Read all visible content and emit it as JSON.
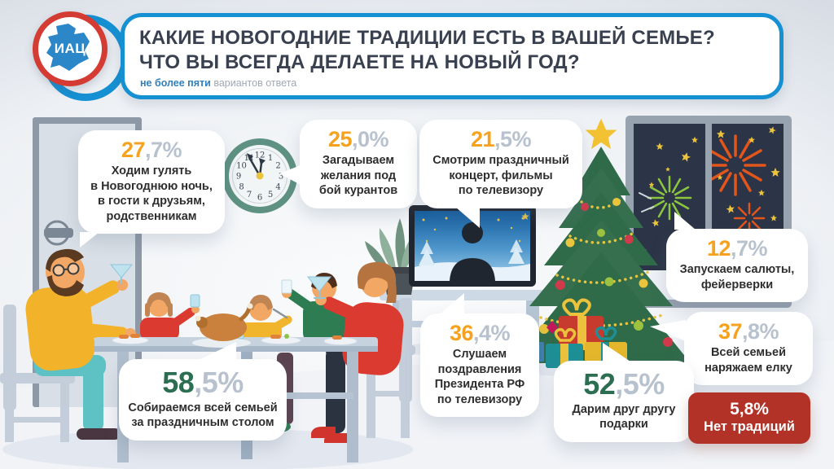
{
  "header": {
    "logo_text": "ИАЦ",
    "title_line1": "КАКИЕ НОВОГОДНИЕ ТРАДИЦИИ ЕСТЬ В ВАШЕЙ СЕМЬЕ?",
    "title_line2": "ЧТО ВЫ ВСЕГДА ДЕЛАЕТЕ НА НОВЫЙ ГОД?",
    "subtitle_emphasis": "не более пяти",
    "subtitle_rest": "вариантов ответа"
  },
  "bubbles": [
    {
      "id": "walk",
      "pct_int": "27",
      "pct_frac": ",7%",
      "accent": "orange",
      "label": "Ходим гулять\nв Новогоднюю ночь,\nв гости к друзьям,\nродственникам"
    },
    {
      "id": "wishes",
      "pct_int": "25",
      "pct_frac": ",0%",
      "accent": "orange",
      "label": "Загадываем\nжелания под\nбой курантов"
    },
    {
      "id": "tv-concert",
      "pct_int": "21",
      "pct_frac": ",5%",
      "accent": "orange",
      "label": "Смотрим праздничный\nконцерт, фильмы\nпо телевизору"
    },
    {
      "id": "fireworks",
      "pct_int": "12",
      "pct_frac": ",7%",
      "accent": "orange",
      "label": "Запускаем салюты,\nфейерверки"
    },
    {
      "id": "president",
      "pct_int": "36",
      "pct_frac": ",4%",
      "accent": "orange",
      "label": "Слушаем\nпоздравления\nПрезидента РФ\nпо телевизору"
    },
    {
      "id": "tree",
      "pct_int": "37",
      "pct_frac": ",8%",
      "accent": "orange",
      "label": "Всей семьей\nнаряжаем елку"
    },
    {
      "id": "gifts",
      "pct_int": "52",
      "pct_frac": ",5%",
      "accent": "green",
      "label": "Дарим друг другу\nподарки"
    },
    {
      "id": "table",
      "pct_int": "58",
      "pct_frac": ",5%",
      "accent": "green",
      "label": "Собираемся всей семьей\nза праздничным столом"
    }
  ],
  "badge": {
    "pct": "5,8%",
    "label": "Нет традиций"
  },
  "scene": {
    "clock_numbers": [
      "1",
      "2",
      "3",
      "4",
      "5",
      "6",
      "7",
      "8",
      "9",
      "10",
      "11",
      "12"
    ],
    "clock_time": "11:55"
  },
  "colors": {
    "accent_orange": "#F6A21E",
    "accent_green": "#2C6E52",
    "pct_fraction_gray": "#B8C2CE",
    "badge_red": "#B23228",
    "header_border_blue": "#1590D2",
    "logo_ring_red": "#D43B33",
    "logo_map_blue": "#2B87C8",
    "title_navy": "#39404F",
    "subtitle_blue": "#2E7FBE",
    "subtitle_gray": "#9FA8B4"
  },
  "chart_data": {
    "type": "bar",
    "title": "КАКИЕ НОВОГОДНИЕ ТРАДИЦИИ ЕСТЬ В ВАШЕЙ СЕМЬЕ? ЧТО ВЫ ВСЕГДА ДЕЛАЕТЕ НА НОВЫЙ ГОД?",
    "subtitle": "не более пяти вариантов ответа",
    "unit": "%",
    "categories": [
      "Собираемся всей семьей за праздничным столом",
      "Дарим друг другу подарки",
      "Всей семьей наряжаем елку",
      "Слушаем поздравления Президента РФ по телевизору",
      "Ходим гулять в Новогоднюю ночь, в гости к друзьям, родственникам",
      "Загадываем желания под бой курантов",
      "Смотрим праздничный концерт, фильмы по телевизору",
      "Запускаем салюты, фейерверки",
      "Нет традиций"
    ],
    "values": [
      58.5,
      52.5,
      37.8,
      36.4,
      27.7,
      25.0,
      21.5,
      12.7,
      5.8
    ]
  }
}
